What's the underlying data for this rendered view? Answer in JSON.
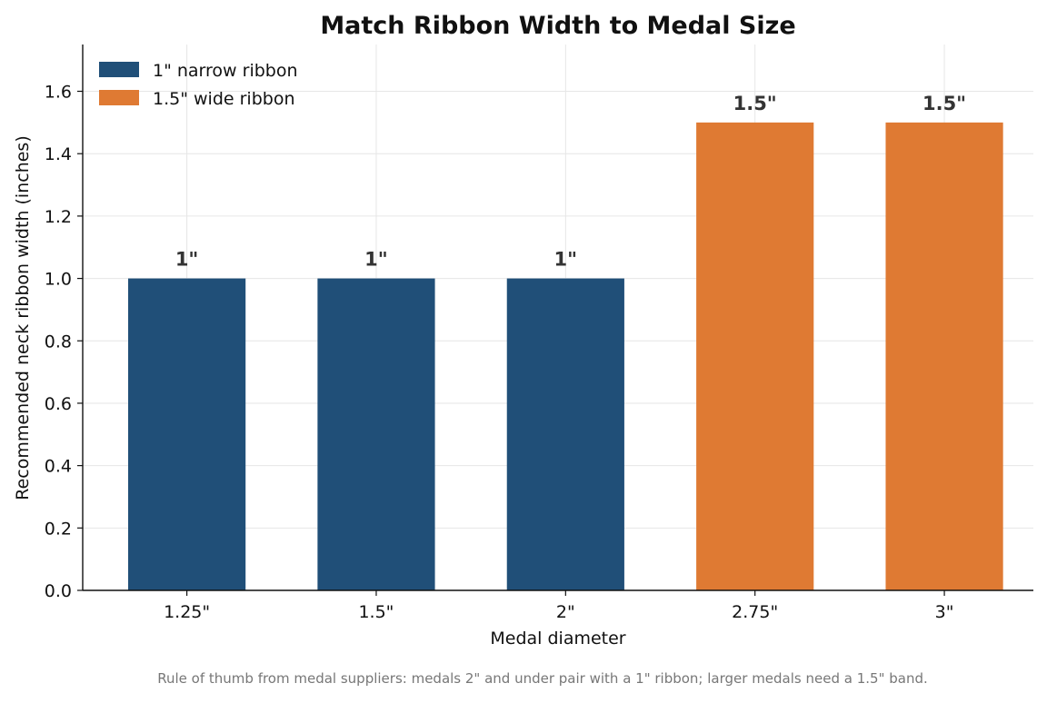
{
  "chart_data": {
    "type": "bar",
    "title": "Match Ribbon Width to Medal Size",
    "xlabel": "Medal diameter",
    "ylabel": "Recommended neck ribbon width (inches)",
    "categories": [
      "1.25\"",
      "1.5\"",
      "2\"",
      "2.75\"",
      "3\""
    ],
    "values": [
      1.0,
      1.0,
      1.0,
      1.5,
      1.5
    ],
    "data_labels": [
      "1\"",
      "1\"",
      "1\"",
      "1.5\"",
      "1.5\""
    ],
    "bar_series": [
      0,
      0,
      0,
      1,
      1
    ],
    "series": [
      {
        "name": "1\" narrow ribbon",
        "color": "#204f78"
      },
      {
        "name": "1.5\" wide ribbon",
        "color": "#df7a33"
      }
    ],
    "ylim": [
      0,
      1.75
    ],
    "yticks": [
      0.0,
      0.2,
      0.4,
      0.6,
      0.8,
      1.0,
      1.2,
      1.4,
      1.6
    ],
    "ytick_labels": [
      "0.0",
      "0.2",
      "0.4",
      "0.6",
      "0.8",
      "1.0",
      "1.2",
      "1.4",
      "1.6"
    ],
    "grid": true,
    "legend_position": "top-left",
    "footnote": "Rule of thumb from medal suppliers: medals 2\" and under pair with a 1\" ribbon; larger medals need a 1.5\" band."
  },
  "colors": {
    "narrow": "#204f78",
    "wide": "#df7a33",
    "grid": "#e6e6e6",
    "axis": "#111111",
    "footnote": "#777777"
  }
}
